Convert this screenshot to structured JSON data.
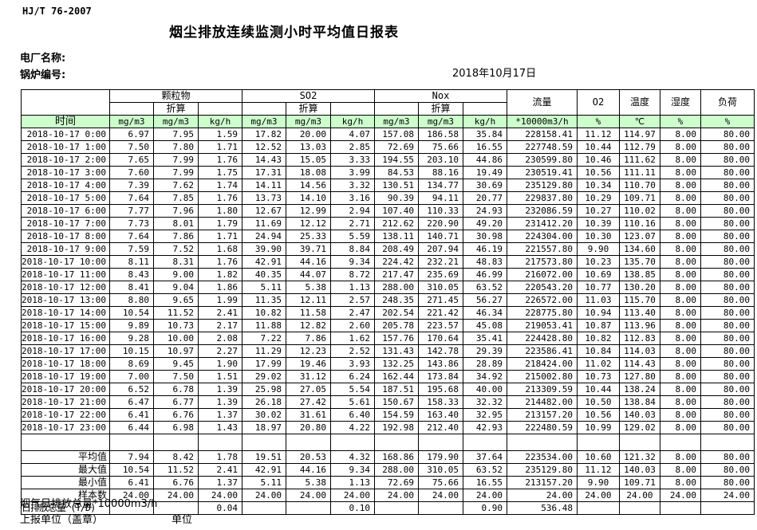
{
  "page": {
    "standard_no": "HJ/T  76-2007",
    "title": "烟尘排放连续监测小时平均值日报表",
    "plant_label": "电厂名称:",
    "boiler_label": "锅炉编号:",
    "date": "2018年10月17日"
  },
  "table": {
    "time_header": "时间",
    "converted_label": "折算",
    "groups": {
      "pm": "颗粒物",
      "so2": "SO2",
      "nox": "Nox",
      "flow": "流量",
      "o2": "O2",
      "temp": "温度",
      "humidity": "湿度",
      "load": "负荷"
    },
    "units": [
      "mg/m3",
      "mg/m3",
      "kg/h",
      "mg/m3",
      "mg/m3",
      "kg/h",
      "mg/m3",
      "mg/m3",
      "kg/h",
      "*10000m3/h",
      "%",
      "℃",
      "%",
      "%"
    ],
    "rows": [
      {
        "time": "2018-10-17 0:00",
        "values": [
          "6.97",
          "7.95",
          "1.59",
          "17.82",
          "20.00",
          "4.07",
          "157.08",
          "186.58",
          "35.84",
          "228158.41",
          "11.12",
          "114.97",
          "8.00",
          "80.00"
        ]
      },
      {
        "time": "2018-10-17 1:00",
        "values": [
          "7.50",
          "7.80",
          "1.71",
          "12.52",
          "13.03",
          "2.85",
          "72.69",
          "75.66",
          "16.55",
          "227748.59",
          "10.44",
          "112.79",
          "8.00",
          "80.00"
        ]
      },
      {
        "time": "2018-10-17 2:00",
        "values": [
          "7.65",
          "7.99",
          "1.76",
          "14.43",
          "15.05",
          "3.33",
          "194.55",
          "203.10",
          "44.86",
          "230599.80",
          "10.46",
          "111.62",
          "8.00",
          "80.00"
        ]
      },
      {
        "time": "2018-10-17 3:00",
        "values": [
          "7.60",
          "7.99",
          "1.75",
          "17.31",
          "18.08",
          "3.99",
          "84.53",
          "88.16",
          "19.49",
          "230519.41",
          "10.56",
          "111.11",
          "8.00",
          "80.00"
        ]
      },
      {
        "time": "2018-10-17 4:00",
        "values": [
          "7.39",
          "7.62",
          "1.74",
          "14.11",
          "14.56",
          "3.32",
          "130.51",
          "134.77",
          "30.69",
          "235129.80",
          "10.34",
          "110.70",
          "8.00",
          "80.00"
        ]
      },
      {
        "time": "2018-10-17 5:00",
        "values": [
          "7.64",
          "7.85",
          "1.76",
          "13.73",
          "14.10",
          "3.16",
          "90.39",
          "94.11",
          "20.77",
          "229837.80",
          "10.29",
          "109.71",
          "8.00",
          "80.00"
        ]
      },
      {
        "time": "2018-10-17 6:00",
        "values": [
          "7.77",
          "7.96",
          "1.80",
          "12.67",
          "12.99",
          "2.94",
          "107.40",
          "110.33",
          "24.93",
          "232086.59",
          "10.27",
          "110.02",
          "8.00",
          "80.00"
        ]
      },
      {
        "time": "2018-10-17 7:00",
        "values": [
          "7.73",
          "8.01",
          "1.79",
          "11.69",
          "12.12",
          "2.71",
          "212.62",
          "220.90",
          "49.20",
          "231412.20",
          "10.39",
          "110.16",
          "8.00",
          "80.00"
        ]
      },
      {
        "time": "2018-10-17 8:00",
        "values": [
          "7.64",
          "7.86",
          "1.71",
          "24.94",
          "25.33",
          "5.59",
          "138.11",
          "140.71",
          "30.98",
          "224304.00",
          "10.30",
          "123.07",
          "8.00",
          "80.00"
        ]
      },
      {
        "time": "2018-10-17 9:00",
        "values": [
          "7.59",
          "7.52",
          "1.68",
          "39.90",
          "39.71",
          "8.84",
          "208.49",
          "207.94",
          "46.19",
          "221557.80",
          "9.90",
          "134.60",
          "8.00",
          "80.00"
        ]
      },
      {
        "time": "2018-10-17 10:00",
        "values": [
          "8.11",
          "8.31",
          "1.76",
          "42.91",
          "44.16",
          "9.34",
          "224.42",
          "232.21",
          "48.83",
          "217573.80",
          "10.23",
          "135.70",
          "8.00",
          "80.00"
        ]
      },
      {
        "time": "2018-10-17 11:00",
        "values": [
          "8.43",
          "9.00",
          "1.82",
          "40.35",
          "44.07",
          "8.72",
          "217.47",
          "235.69",
          "46.99",
          "216072.00",
          "10.69",
          "138.85",
          "8.00",
          "80.00"
        ]
      },
      {
        "time": "2018-10-17 12:00",
        "values": [
          "8.41",
          "9.04",
          "1.86",
          "5.11",
          "5.38",
          "1.13",
          "288.00",
          "310.05",
          "63.52",
          "220543.20",
          "10.77",
          "130.20",
          "8.00",
          "80.00"
        ]
      },
      {
        "time": "2018-10-17 13:00",
        "values": [
          "8.80",
          "9.65",
          "1.99",
          "11.35",
          "12.11",
          "2.57",
          "248.35",
          "271.45",
          "56.27",
          "226572.00",
          "11.03",
          "115.70",
          "8.00",
          "80.00"
        ]
      },
      {
        "time": "2018-10-17 14:00",
        "values": [
          "10.54",
          "11.52",
          "2.41",
          "10.82",
          "11.58",
          "2.47",
          "202.54",
          "221.42",
          "46.34",
          "228775.80",
          "10.94",
          "113.40",
          "8.00",
          "80.00"
        ]
      },
      {
        "time": "2018-10-17 15:00",
        "values": [
          "9.89",
          "10.73",
          "2.17",
          "11.88",
          "12.82",
          "2.60",
          "205.78",
          "223.57",
          "45.08",
          "219053.41",
          "10.87",
          "113.96",
          "8.00",
          "80.00"
        ]
      },
      {
        "time": "2018-10-17 16:00",
        "values": [
          "9.28",
          "10.00",
          "2.08",
          "7.22",
          "7.86",
          "1.62",
          "157.76",
          "170.64",
          "35.41",
          "224428.80",
          "10.82",
          "112.83",
          "8.00",
          "80.00"
        ]
      },
      {
        "time": "2018-10-17 17:00",
        "values": [
          "10.15",
          "10.97",
          "2.27",
          "11.29",
          "12.23",
          "2.52",
          "131.43",
          "142.78",
          "29.39",
          "223586.41",
          "10.84",
          "114.03",
          "8.00",
          "80.00"
        ]
      },
      {
        "time": "2018-10-17 18:00",
        "values": [
          "8.69",
          "9.45",
          "1.90",
          "17.99",
          "19.46",
          "3.93",
          "132.25",
          "143.86",
          "28.89",
          "218424.00",
          "11.02",
          "114.43",
          "8.00",
          "80.00"
        ]
      },
      {
        "time": "2018-10-17 19:00",
        "values": [
          "7.00",
          "7.50",
          "1.51",
          "29.02",
          "31.12",
          "6.24",
          "162.44",
          "173.84",
          "34.92",
          "215002.80",
          "10.73",
          "127.80",
          "8.00",
          "80.00"
        ]
      },
      {
        "time": "2018-10-17 20:00",
        "values": [
          "6.52",
          "6.78",
          "1.39",
          "25.98",
          "27.05",
          "5.54",
          "187.51",
          "195.68",
          "40.00",
          "213309.59",
          "10.44",
          "138.24",
          "8.00",
          "80.00"
        ]
      },
      {
        "time": "2018-10-17 21:00",
        "values": [
          "6.47",
          "6.77",
          "1.39",
          "26.18",
          "27.42",
          "5.61",
          "150.67",
          "158.33",
          "32.32",
          "214482.00",
          "10.50",
          "138.84",
          "8.00",
          "80.00"
        ]
      },
      {
        "time": "2018-10-17 22:00",
        "values": [
          "6.41",
          "6.76",
          "1.37",
          "30.02",
          "31.61",
          "6.40",
          "154.59",
          "163.40",
          "32.95",
          "213157.20",
          "10.56",
          "140.03",
          "8.00",
          "80.00"
        ]
      },
      {
        "time": "2018-10-17 23:00",
        "values": [
          "6.44",
          "6.98",
          "1.43",
          "18.97",
          "20.80",
          "4.22",
          "192.98",
          "212.40",
          "42.93",
          "222480.59",
          "10.99",
          "129.02",
          "8.00",
          "80.00"
        ]
      }
    ],
    "summary": [
      {
        "label": "平均值",
        "values": [
          "7.94",
          "8.42",
          "1.78",
          "19.51",
          "20.53",
          "4.32",
          "168.86",
          "179.90",
          "37.64",
          "223534.00",
          "10.60",
          "121.32",
          "8.00",
          "80.00"
        ]
      },
      {
        "label": "最大值",
        "values": [
          "10.54",
          "11.52",
          "2.41",
          "42.91",
          "44.16",
          "9.34",
          "288.00",
          "310.05",
          "63.52",
          "235129.80",
          "11.12",
          "140.03",
          "8.00",
          "80.00"
        ]
      },
      {
        "label": "最小值",
        "values": [
          "6.41",
          "6.76",
          "1.37",
          "5.11",
          "5.38",
          "1.13",
          "72.69",
          "75.66",
          "16.55",
          "213157.20",
          "9.90",
          "109.71",
          "8.00",
          "80.00"
        ]
      },
      {
        "label": "样本数",
        "values": [
          "24.00",
          "24.00",
          "24.00",
          "24.00",
          "24.00",
          "24.00",
          "24.00",
          "24.00",
          "24.00",
          "24.00",
          "24.00",
          "24.00",
          "24.00",
          "24.00"
        ]
      },
      {
        "label": "日排放总量 (T/D)",
        "values": [
          "",
          "",
          "0.04",
          "",
          "",
          "0.10",
          "",
          "",
          "0.90",
          "536.48",
          "",
          "",
          "",
          ""
        ]
      }
    ]
  },
  "footer": {
    "note": "烟气日排放总量*10000m3/h",
    "report_unit_label": "上报单位（盖章）",
    "unit_label": "单位"
  },
  "colors": {
    "header_green": "#ccffcc"
  }
}
